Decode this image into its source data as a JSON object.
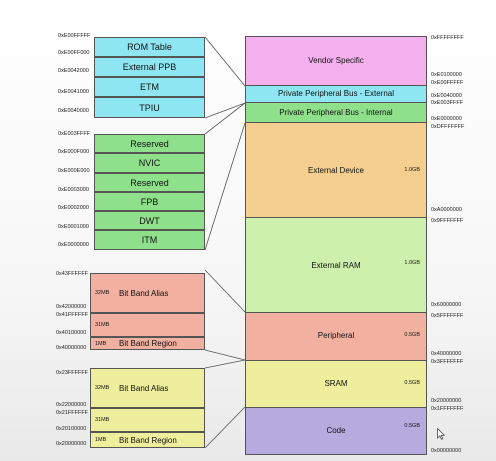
{
  "colors": {
    "blue": "#8ee6f2",
    "green": "#8ee08a",
    "salmon": "#f2b0a0",
    "olive": "#eeee9c",
    "pink": "#f4b0ec",
    "orange": "#f4cf90",
    "lightgreen": "#cdf1ac",
    "purple": "#b7aade"
  },
  "ppb_external": {
    "rows": [
      "ROM Table",
      "External PPB",
      "ETM",
      "TPIU"
    ],
    "addresses": [
      "0xE00FFFFF",
      "0xE00FF000",
      "0xE0042000",
      "0xE0041000",
      "0xE0040000"
    ]
  },
  "ppb_internal": {
    "rows": [
      "Reserved",
      "NVIC",
      "Reserved",
      "FPB",
      "DWT",
      "ITM"
    ],
    "addresses": [
      "0xE003FFFF",
      "0xE000F000",
      "0xE000E000",
      "0xE0003000",
      "0xE0002000",
      "0xE0001000",
      "0xE0000000"
    ]
  },
  "peripheral_bitband": {
    "alias_size": "32MB",
    "alias_label": "Bit Band Alias",
    "gap_size": "31MB",
    "region_size": "1MB",
    "region_label": "Bit Band Region",
    "addresses": [
      "0x43FFFFFF",
      "0x42000000",
      "0x41FFFFFF",
      "0x40100000",
      "0x40000000"
    ]
  },
  "sram_bitband": {
    "alias_size": "32MB",
    "alias_label": "Bit Band Alias",
    "gap_size": "31MB",
    "region_size": "1MB",
    "region_label": "Bit Band Region",
    "addresses": [
      "0x23FFFFFF",
      "0x22000000",
      "0x21FFFFFF",
      "0x20100000",
      "0x20000000"
    ]
  },
  "memory_map": [
    {
      "key": "vendor",
      "label": "Vendor Specific",
      "size": ""
    },
    {
      "key": "ppb_ext",
      "label": "Private Peripheral Bus - External",
      "size": ""
    },
    {
      "key": "ppb_int",
      "label": "Private Peripheral Bus - Internal",
      "size": ""
    },
    {
      "key": "ext_device",
      "label": "External Device",
      "size": "1.0GB"
    },
    {
      "key": "ext_ram",
      "label": "External RAM",
      "size": "1.0GB"
    },
    {
      "key": "peripheral",
      "label": "Peripheral",
      "size": "0.5GB"
    },
    {
      "key": "sram",
      "label": "SRAM",
      "size": "0.5GB"
    },
    {
      "key": "code",
      "label": "Code",
      "size": "0.5GB"
    }
  ],
  "memory_map_addresses": [
    "0xFFFFFFFF",
    "0xE0100000",
    "0xE00FFFFF",
    "0xE0040000",
    "0xE003FFFF",
    "0xE0000000",
    "0xDFFFFFFF",
    "0xA0000000",
    "0x9FFFFFFF",
    "0x60000000",
    "0x5FFFFFFF",
    "0x40000000",
    "0x3FFFFFFF",
    "0x20000000",
    "0x1FFFFFFF",
    "0x00000000"
  ]
}
